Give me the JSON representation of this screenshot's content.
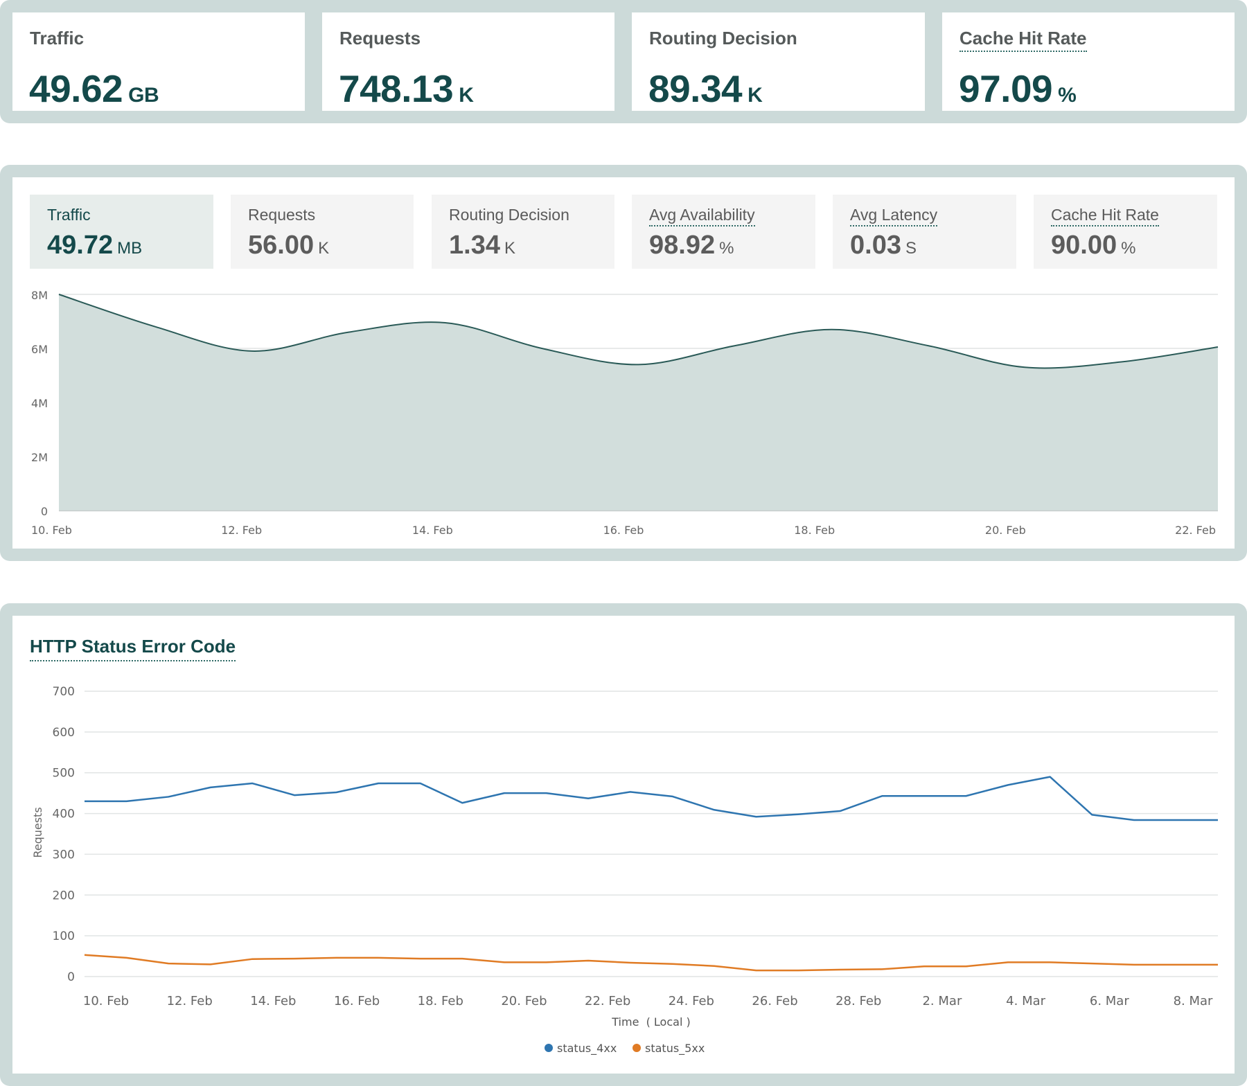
{
  "kpis": [
    {
      "label": "Traffic",
      "value": "49.62",
      "unit": "GB"
    },
    {
      "label": "Requests",
      "value": "748.13",
      "unit": "K"
    },
    {
      "label": "Routing Decision",
      "value": "89.34",
      "unit": "K"
    },
    {
      "label": "Cache Hit Rate",
      "value": "97.09",
      "unit": "%"
    }
  ],
  "tiles": [
    {
      "label": "Traffic",
      "value": "49.72",
      "unit": "MB"
    },
    {
      "label": "Requests",
      "value": "56.00",
      "unit": "K"
    },
    {
      "label": "Routing Decision",
      "value": "1.34",
      "unit": "K"
    },
    {
      "label": "Avg Availability",
      "value": "98.92",
      "unit": "%"
    },
    {
      "label": "Avg Latency",
      "value": "0.03",
      "unit": "S"
    },
    {
      "label": "Cache Hit Rate",
      "value": "90.00",
      "unit": "%"
    }
  ],
  "colors": {
    "accent": "#14494a",
    "panel_border": "#ccdad9",
    "area_fill": "#d2dedc",
    "area_line": "#2a5a57",
    "series_4xx": "#2e75b0",
    "series_5xx": "#e07b24"
  },
  "chart_data": [
    {
      "type": "area",
      "title": "Traffic",
      "x": [
        "10. Feb",
        "11. Feb",
        "12. Feb",
        "13. Feb",
        "14. Feb",
        "15. Feb",
        "16. Feb",
        "17. Feb",
        "18. Feb",
        "19. Feb",
        "20. Feb",
        "21. Feb",
        "22. Feb"
      ],
      "values": [
        8.0,
        6.8,
        5.9,
        6.6,
        6.95,
        6.0,
        5.4,
        6.1,
        6.7,
        6.1,
        5.3,
        5.5,
        6.05
      ],
      "ylim": [
        0,
        8
      ],
      "y_ticks": [
        0,
        2,
        4,
        6,
        8
      ],
      "y_tick_labels": [
        "0",
        "2M",
        "4M",
        "6M",
        "8M"
      ],
      "x_tick_labels": [
        "10. Feb",
        "12. Feb",
        "14. Feb",
        "16. Feb",
        "18. Feb",
        "20. Feb",
        "22. Feb"
      ],
      "grid": true
    },
    {
      "type": "line",
      "title": "HTTP Status Error Code",
      "xlabel": "Time  ( Local )",
      "ylabel": "Requests",
      "ylim": [
        0,
        700
      ],
      "y_ticks": [
        0,
        100,
        200,
        300,
        400,
        500,
        600,
        700
      ],
      "x_tick_labels": [
        "10. Feb",
        "12. Feb",
        "14. Feb",
        "16. Feb",
        "18. Feb",
        "20. Feb",
        "22. Feb",
        "24. Feb",
        "26. Feb",
        "28. Feb",
        "2. Mar",
        "4. Mar",
        "6. Mar",
        "8. Mar"
      ],
      "point_count": 28,
      "series": [
        {
          "name": "status_4xx",
          "values": [
            430,
            430,
            441,
            464,
            474,
            445,
            452,
            474,
            474,
            426,
            450,
            450,
            437,
            453,
            442,
            409,
            392,
            398,
            406,
            443,
            443,
            443,
            470,
            490,
            397,
            384,
            384,
            384
          ]
        },
        {
          "name": "status_5xx",
          "values": [
            53,
            46,
            32,
            30,
            43,
            44,
            46,
            46,
            44,
            44,
            35,
            35,
            39,
            34,
            31,
            26,
            15,
            15,
            17,
            18,
            25,
            25,
            35,
            35,
            32,
            29,
            29,
            29
          ]
        }
      ],
      "legend_position": "bottom-center",
      "grid": true
    }
  ]
}
